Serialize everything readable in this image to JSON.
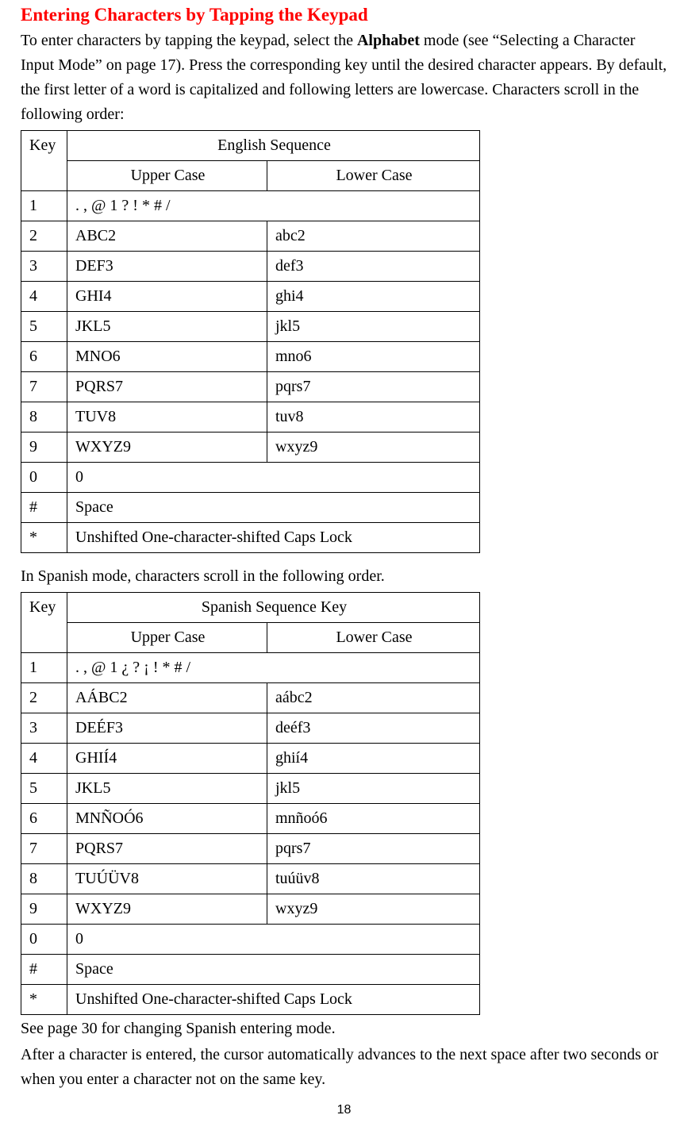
{
  "heading": "Entering Characters by Tapping the Keypad",
  "intro_a": "To enter characters by tapping the keypad, select the ",
  "intro_bold": "Alphabet",
  "intro_b": " mode (see “Selecting a Character Input Mode” on page 17). Press the corresponding key until the desired character appears. By default, the first letter of a word is capitalized and following letters are lowercase. Characters scroll in the following order:",
  "t1": {
    "h_key": "Key",
    "h_seq": "English Sequence",
    "h_upper": "Upper Case",
    "h_lower": "Lower Case",
    "rows": [
      {
        "key": "1",
        "full": ". , @ 1 ? ! * # /"
      },
      {
        "key": "2",
        "upper": "ABC2",
        "lower": "abc2"
      },
      {
        "key": "3",
        "upper": "DEF3",
        "lower": "def3"
      },
      {
        "key": "4",
        "upper": "GHI4",
        "lower": "ghi4"
      },
      {
        "key": "5",
        "upper": "JKL5",
        "lower": "jkl5"
      },
      {
        "key": "6",
        "upper": "MNO6",
        "lower": "mno6"
      },
      {
        "key": "7",
        "upper": "PQRS7",
        "lower": "pqrs7"
      },
      {
        "key": "8",
        "upper": "TUV8",
        "lower": "tuv8"
      },
      {
        "key": "9",
        "upper": "WXYZ9",
        "lower": "wxyz9"
      },
      {
        "key": "0",
        "full": "0"
      },
      {
        "key": "#",
        "full": "Space"
      },
      {
        "key": "*",
        "full": "Unshifted One-character-shifted Caps Lock"
      }
    ]
  },
  "mid_text": "In Spanish mode, characters scroll in the following order.",
  "t2": {
    "h_key": "Key",
    "h_seq": "Spanish Sequence Key",
    "h_upper": "Upper Case",
    "h_lower": "Lower Case",
    "rows": [
      {
        "key": "1",
        "full": ". , @ 1 ¿ ? ¡ ! * # /"
      },
      {
        "key": "2",
        "upper": "AÁBC2",
        "lower": "aábc2"
      },
      {
        "key": "3",
        "upper": "DEÉF3",
        "lower": "deéf3"
      },
      {
        "key": "4",
        "upper": "GHIÍ4",
        "lower": "ghií4"
      },
      {
        "key": "5",
        "upper": "JKL5",
        "lower": "jkl5"
      },
      {
        "key": "6",
        "upper": "MNÑOÓ6",
        "lower": "mnñoó6"
      },
      {
        "key": "7",
        "upper": "PQRS7",
        "lower": "pqrs7"
      },
      {
        "key": "8",
        "upper": "TUÚÜV8",
        "lower": "tuúüv8"
      },
      {
        "key": "9",
        "upper": "WXYZ9",
        "lower": "wxyz9"
      },
      {
        "key": "0",
        "full": "0"
      },
      {
        "key": "#",
        "full": "Space"
      },
      {
        "key": "*",
        "full": "Unshifted One-character-shifted Caps Lock"
      }
    ]
  },
  "after1": "See page 30 for changing Spanish entering mode.",
  "after2": "After a character is entered, the cursor automatically advances to the next space after two seconds or when you enter a character not on the same key.",
  "page_number": "18"
}
